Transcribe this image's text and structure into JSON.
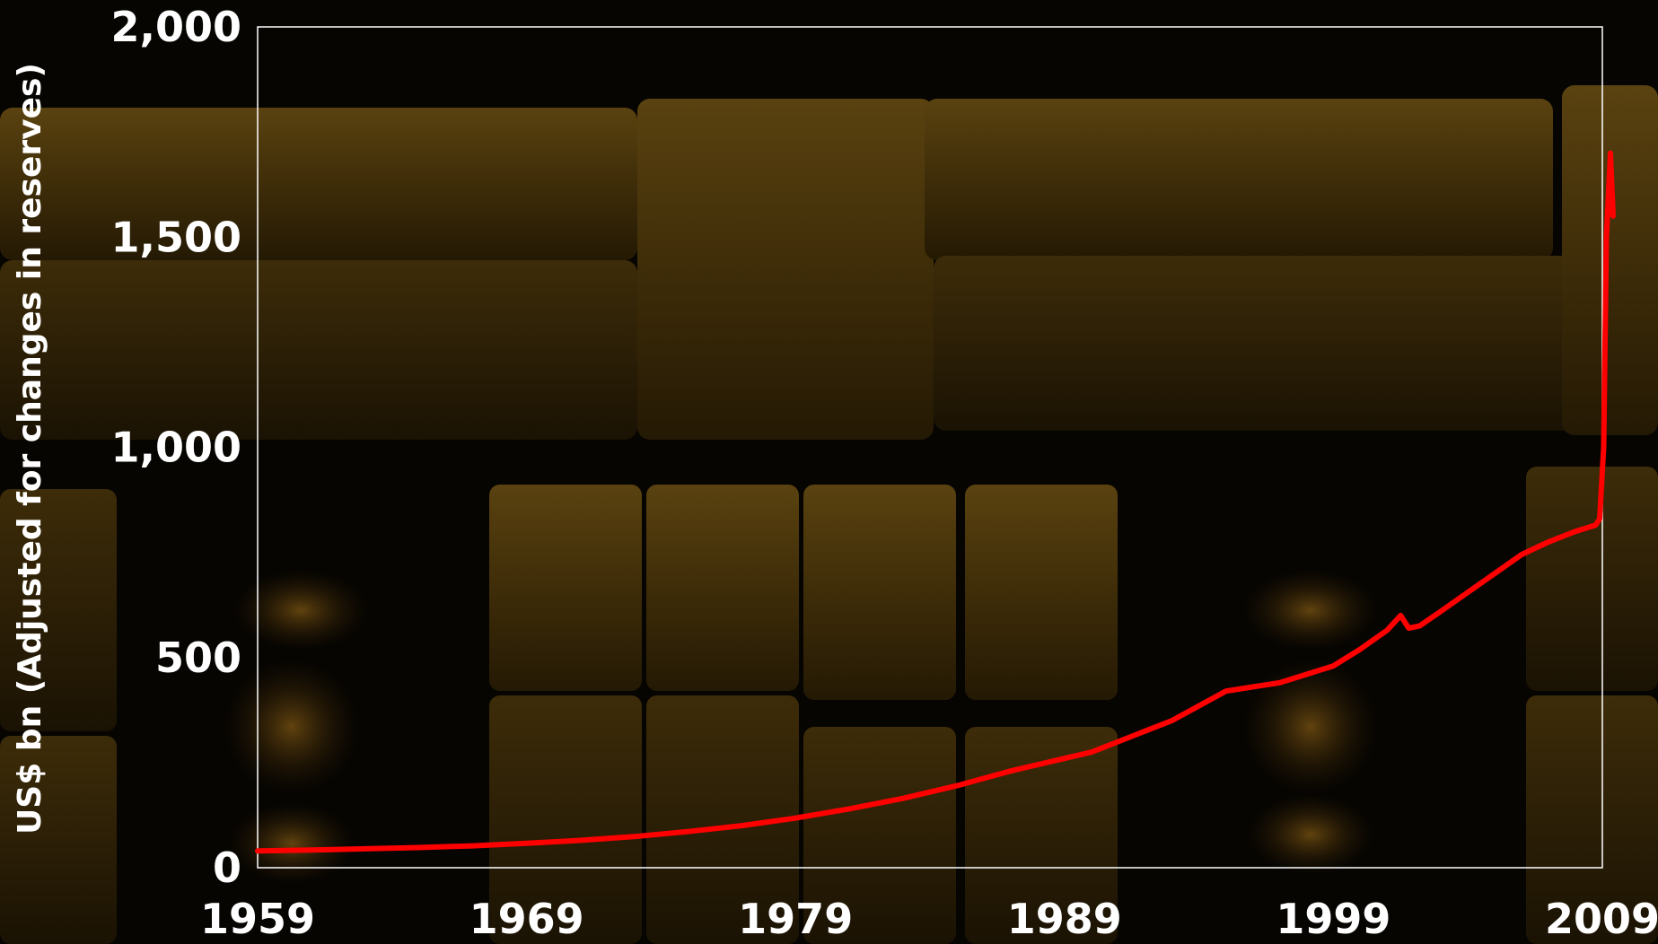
{
  "chart_data": {
    "type": "line",
    "title": "",
    "xlabel": "",
    "ylabel": "US$ bn (Adjusted for changes in reserves)",
    "xlim": [
      1959,
      2009
    ],
    "ylim": [
      0,
      2000
    ],
    "x_ticks": [
      "1959",
      "1969",
      "1979",
      "1989",
      "1999",
      "2009"
    ],
    "y_ticks": [
      "0",
      "500",
      "1,000",
      "1,500",
      "2,000"
    ],
    "grid": false,
    "legend": "none",
    "series": [
      {
        "color": "#ff0000",
        "x": [
          1959.0,
          1961.0,
          1963.0,
          1965.0,
          1967.0,
          1969.0,
          1971.0,
          1973.0,
          1975.0,
          1977.0,
          1979.0,
          1981.0,
          1983.0,
          1985.0,
          1987.0,
          1989.0,
          1990.0,
          1991.0,
          1992.0,
          1993.0,
          1994.0,
          1995.0,
          1996.0,
          1997.0,
          1998.0,
          1999.0,
          2000.0,
          2001.0,
          2001.5,
          2001.8,
          2002.2,
          2003.0,
          2004.0,
          2005.0,
          2006.0,
          2007.0,
          2008.0,
          2008.5,
          2008.75,
          2008.9,
          2009.05,
          2009.15,
          2009.3,
          2009.4
        ],
        "values": [
          40,
          42,
          45,
          48,
          52,
          58,
          65,
          74,
          86,
          100,
          118,
          140,
          165,
          195,
          230,
          260,
          275,
          300,
          325,
          350,
          385,
          420,
          430,
          440,
          460,
          480,
          520,
          565,
          600,
          570,
          575,
          610,
          655,
          700,
          745,
          775,
          800,
          810,
          815,
          830,
          1000,
          1500,
          1700,
          1550
        ]
      }
    ]
  }
}
